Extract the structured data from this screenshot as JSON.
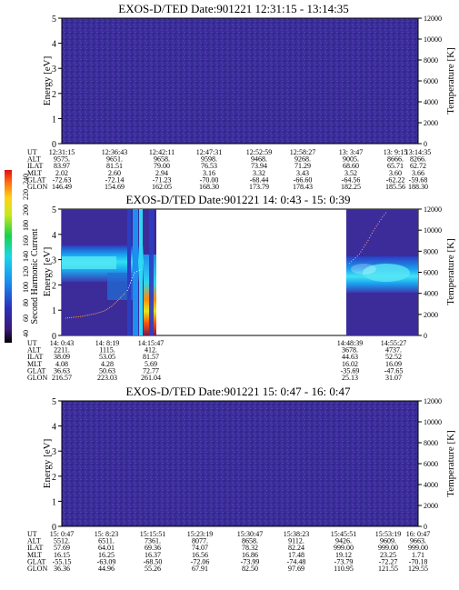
{
  "chart_data": [
    {
      "type": "heatmap",
      "title": "EXOS-D/TED  Date:901221  12:31:15 - 13:14:35",
      "ylabel": "Energy [eV]",
      "y2label": "Temperature [K]",
      "ylim": [
        0,
        5
      ],
      "y2lim": [
        0,
        12000
      ],
      "yticks": [
        "0",
        "1",
        "2",
        "3",
        "4",
        "5"
      ],
      "y2ticks": [
        "0",
        "2000",
        "4000",
        "6000",
        "8000",
        "10000",
        "12000"
      ],
      "fill": "#3c2a98",
      "ephemeris": {
        "labels": [
          "UT",
          "ALT",
          "ILAT",
          "MLT",
          "GLAT",
          "GLON"
        ],
        "columns": [
          [
            "12:31:15",
            "9575.",
            "83.97",
            "2.02",
            "-72.63",
            "146.49"
          ],
          [
            "12:36:43",
            "9651.",
            "81.51",
            "2.60",
            "-72.14",
            "154.69"
          ],
          [
            "12:42:11",
            "9658.",
            "79.00",
            "2.94",
            "-71.23",
            "162.05"
          ],
          [
            "12:47:31",
            "9598.",
            "76.53",
            "3.16",
            "-70.00",
            "168.30"
          ],
          [
            "12:52:59",
            "9468.",
            "73.94",
            "3.32",
            "-68.44",
            "173.79"
          ],
          [
            "12:58:27",
            "9268.",
            "71.29",
            "3.43",
            "-66.60",
            "178.43"
          ],
          [
            "13: 3:47",
            "9005.",
            "68.60",
            "3.52",
            "-64.56",
            "182.25"
          ],
          [
            "13: 9:15",
            "8666.",
            "65.71",
            "3.60",
            "-62.22",
            "185.56"
          ],
          [
            "13:14:35",
            "8266.",
            "62.72",
            "3.66",
            "-59.68",
            "188.30"
          ]
        ]
      }
    },
    {
      "type": "heatmap",
      "title": "EXOS-D/TED   Date:901221   14: 0:43 - 15: 0:39",
      "ylabel": "Energy [eV]",
      "y2label": "Temperature [K]",
      "ylim": [
        0,
        5
      ],
      "y2lim": [
        0,
        12000
      ],
      "yticks": [
        "0",
        "1",
        "2",
        "3",
        "4",
        "5"
      ],
      "y2ticks": [
        "0",
        "2000",
        "4000",
        "6000",
        "8000",
        "10000",
        "12000"
      ],
      "fill": "#3c2a98",
      "colorbar": {
        "label": "Second Harmonic Current",
        "ticks": [
          "40",
          "60",
          "80",
          "100",
          "120",
          "140",
          "160",
          "180",
          "200",
          "220",
          "240"
        ]
      },
      "ephemeris": {
        "labels": [
          "UT",
          "ALT",
          "ILAT",
          "MLT",
          "GLAT",
          "GLON"
        ],
        "columns": [
          [
            "14: 0:43",
            "2211.",
            "38.09",
            "4.08",
            "36.63",
            "216.57"
          ],
          [
            "14: 8:19",
            "1115.",
            "53.05",
            "4.28",
            "50.63",
            "223.03"
          ],
          [
            "14:15:47",
            "412.",
            "81.57",
            "5.69",
            "72.77",
            "261.04"
          ],
          [
            "14:48:39",
            "3678.",
            "44.63",
            "16.02",
            "-35.69",
            "25.13"
          ],
          [
            "14:55:27",
            "4737.",
            "52.52",
            "16.09",
            "-47.65",
            "31.07"
          ]
        ]
      }
    },
    {
      "type": "heatmap",
      "title": "EXOS-D/TED   Date:901221   15: 0:47 - 16: 0:47",
      "ylabel": "Energy [eV]",
      "y2label": "Temperature [K]",
      "ylim": [
        0,
        5
      ],
      "y2lim": [
        0,
        12000
      ],
      "yticks": [
        "0",
        "1",
        "2",
        "3",
        "4",
        "5"
      ],
      "y2ticks": [
        "0",
        "2000",
        "4000",
        "6000",
        "8000",
        "10000",
        "12000"
      ],
      "fill": "#3c2a98",
      "ephemeris": {
        "labels": [
          "UT",
          "ALT",
          "ILAT",
          "MLT",
          "GLAT",
          "GLON"
        ],
        "columns": [
          [
            "15: 0:47",
            "5512.",
            "57.69",
            "16.15",
            "-55.15",
            "36.36"
          ],
          [
            "15: 8:23",
            "6511.",
            "64.01",
            "16.25",
            "-63.09",
            "44.96"
          ],
          [
            "15:15:51",
            "7361.",
            "69.36",
            "16.37",
            "-68.50",
            "55.26"
          ],
          [
            "15:23:19",
            "8077.",
            "74.07",
            "16.56",
            "-72.06",
            "67.91"
          ],
          [
            "15:30:47",
            "8658.",
            "78.32",
            "16.86",
            "-73.99",
            "82.50"
          ],
          [
            "15:38:23",
            "9112.",
            "82.24",
            "17.48",
            "-74.48",
            "97.69"
          ],
          [
            "15:45:51",
            "9426.",
            "999.00",
            "19.12",
            "-73.79",
            "110.95"
          ],
          [
            "15:53:19",
            "9609.",
            "999.00",
            "23.25",
            "-72.27",
            "121.55"
          ],
          [
            "16: 0:47",
            "9663.",
            "999.00",
            "1.71",
            "-70.18",
            "129.55"
          ]
        ]
      }
    }
  ]
}
